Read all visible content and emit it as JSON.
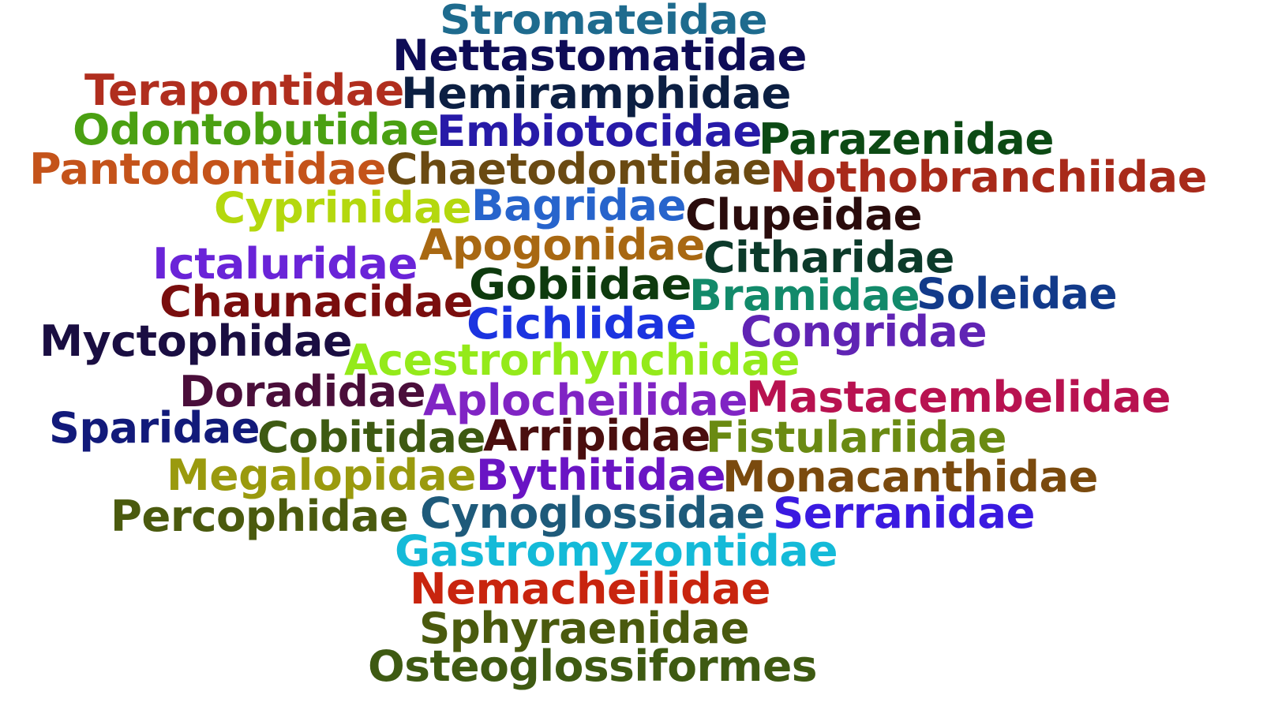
{
  "words": [
    {
      "text": "Stromateidae",
      "color": "#1e6b8e"
    },
    {
      "text": "Nettastomatidae",
      "color": "#0e0c57"
    },
    {
      "text": "Terapontidae",
      "color": "#b02e1e"
    },
    {
      "text": "Hemiramphidae",
      "color": "#0c1f42"
    },
    {
      "text": "Odontobutidae",
      "color": "#4aa012"
    },
    {
      "text": "Embiotocidae",
      "color": "#271aa8"
    },
    {
      "text": "Parazenidae",
      "color": "#0c4a14"
    },
    {
      "text": "Pantodontidae",
      "color": "#c4531a"
    },
    {
      "text": "Chaetodontidae",
      "color": "#6a4a12"
    },
    {
      "text": "Nothobranchiidae",
      "color": "#a82a1a"
    },
    {
      "text": "Cyprinidae",
      "color": "#b4d80e"
    },
    {
      "text": "Bagridae",
      "color": "#2764cc"
    },
    {
      "text": "Clupeidae",
      "color": "#2a0c0c"
    },
    {
      "text": "Apogonidae",
      "color": "#a86812"
    },
    {
      "text": "Ictaluridae",
      "color": "#6a24d8"
    },
    {
      "text": "Citharidae",
      "color": "#0c3a2a"
    },
    {
      "text": "Gobiidae",
      "color": "#0e3a0e"
    },
    {
      "text": "Chaunacidae",
      "color": "#7a0e0e"
    },
    {
      "text": "Bramidae",
      "color": "#128a6a"
    },
    {
      "text": "Soleidae",
      "color": "#123a8a"
    },
    {
      "text": "Cichlidae",
      "color": "#1c34e0"
    },
    {
      "text": "Myctophidae",
      "color": "#1a0e42"
    },
    {
      "text": "Congridae",
      "color": "#6024b4"
    },
    {
      "text": "Acestrorhynchidae",
      "color": "#94ea1a"
    },
    {
      "text": "Doradidae",
      "color": "#4a0e3a"
    },
    {
      "text": "Aplocheilidae",
      "color": "#8024c4"
    },
    {
      "text": "Mastacembelidae",
      "color": "#b81250"
    },
    {
      "text": "Sparidae",
      "color": "#121a7a"
    },
    {
      "text": "Cobitidae",
      "color": "#3e5a12"
    },
    {
      "text": "Arripidae",
      "color": "#4a0e0e"
    },
    {
      "text": "Fistulariidae",
      "color": "#6a8a12"
    },
    {
      "text": "Megalopidae",
      "color": "#9a9a0e"
    },
    {
      "text": "Bythitidae",
      "color": "#6a14c4"
    },
    {
      "text": "Monacanthidae",
      "color": "#7a4a0e"
    },
    {
      "text": "Percophidae",
      "color": "#4a5a0e"
    },
    {
      "text": "Cynoglossidae",
      "color": "#1e5a7a"
    },
    {
      "text": "Serranidae",
      "color": "#3a1ae0"
    },
    {
      "text": "Gastromyzontidae",
      "color": "#14bad8"
    },
    {
      "text": "Nemacheilidae",
      "color": "#c8240e"
    },
    {
      "text": "Sphyraenidae",
      "color": "#4a5a0e"
    },
    {
      "text": "Osteoglossiformes",
      "color": "#3e5a12"
    }
  ]
}
